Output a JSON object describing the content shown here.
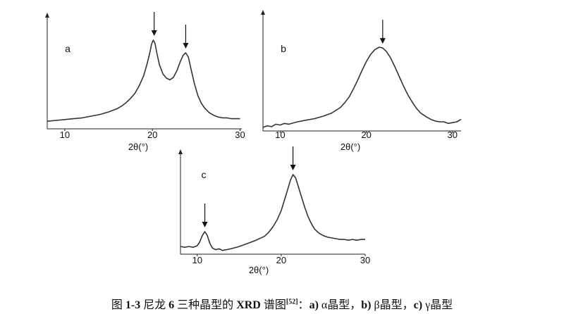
{
  "chart_data": [
    {
      "type": "line",
      "panel": "a",
      "xlabel": "2θ(°)",
      "ylabel": "",
      "xlim": [
        8,
        30.2
      ],
      "xticks": [
        10,
        20,
        30
      ],
      "peaks_marked": [
        20.2,
        23.8
      ],
      "series": [
        {
          "x": [
            8.0,
            9.0,
            10.0,
            11.0,
            12.0,
            13.0,
            14.0,
            15.0,
            16.0,
            16.5,
            17.0,
            17.5,
            18.0,
            18.5,
            19.0,
            19.4,
            19.7,
            19.9,
            20.1,
            20.3,
            20.5,
            20.8,
            21.2,
            21.6,
            22.0,
            22.4,
            22.8,
            23.2,
            23.5,
            23.8,
            24.1,
            24.4,
            24.8,
            25.2,
            25.6,
            26.0,
            26.5,
            27.0,
            27.5,
            28.0,
            28.5,
            29.0,
            29.5,
            30.0
          ],
          "y": [
            0.04,
            0.05,
            0.06,
            0.07,
            0.08,
            0.1,
            0.12,
            0.15,
            0.19,
            0.22,
            0.26,
            0.31,
            0.37,
            0.46,
            0.58,
            0.72,
            0.85,
            0.95,
            1.0,
            0.96,
            0.85,
            0.71,
            0.6,
            0.55,
            0.53,
            0.56,
            0.64,
            0.75,
            0.82,
            0.85,
            0.8,
            0.66,
            0.48,
            0.34,
            0.25,
            0.19,
            0.14,
            0.11,
            0.09,
            0.08,
            0.08,
            0.07,
            0.07,
            0.07
          ]
        }
      ]
    },
    {
      "type": "line",
      "panel": "b",
      "xlabel": "2θ(°)",
      "ylabel": "",
      "xlim": [
        8,
        31
      ],
      "xticks": [
        10,
        20,
        30
      ],
      "peaks_marked": [
        21.9
      ],
      "series": [
        {
          "x": [
            8.0,
            8.5,
            9.0,
            9.5,
            10.0,
            10.5,
            11.0,
            12.0,
            13.0,
            14.0,
            15.0,
            16.0,
            17.0,
            17.5,
            18.0,
            18.5,
            19.0,
            19.5,
            20.0,
            20.5,
            21.0,
            21.5,
            21.9,
            22.3,
            22.8,
            23.3,
            23.8,
            24.3,
            24.8,
            25.3,
            25.8,
            26.3,
            27.0,
            27.5,
            28.0,
            28.5,
            29.0,
            29.5,
            30.0,
            30.5,
            31.0
          ],
          "y": [
            0.0,
            0.02,
            0.01,
            0.04,
            0.03,
            0.05,
            0.04,
            0.07,
            0.09,
            0.11,
            0.14,
            0.18,
            0.25,
            0.31,
            0.38,
            0.48,
            0.59,
            0.71,
            0.82,
            0.91,
            0.97,
            1.0,
            0.99,
            0.95,
            0.87,
            0.76,
            0.64,
            0.52,
            0.41,
            0.32,
            0.24,
            0.18,
            0.13,
            0.1,
            0.08,
            0.07,
            0.07,
            0.05,
            0.06,
            0.07,
            0.1
          ]
        }
      ]
    },
    {
      "type": "line",
      "panel": "c",
      "xlabel": "2θ(°)",
      "ylabel": "",
      "xlim": [
        8,
        30
      ],
      "xticks": [
        10,
        20,
        30
      ],
      "peaks_marked": [
        10.9,
        21.4
      ],
      "series": [
        {
          "x": [
            8.0,
            8.5,
            9.0,
            9.5,
            10.0,
            10.3,
            10.6,
            10.9,
            11.2,
            11.5,
            11.8,
            12.2,
            12.6,
            13.0,
            13.5,
            14.0,
            15.0,
            16.0,
            17.0,
            18.0,
            18.5,
            19.0,
            19.5,
            20.0,
            20.4,
            20.8,
            21.1,
            21.4,
            21.7,
            22.0,
            22.4,
            22.8,
            23.2,
            23.6,
            24.0,
            24.5,
            25.0,
            25.5,
            26.0,
            26.5,
            27.0,
            27.5,
            28.0,
            28.5,
            29.0,
            29.5,
            30.0
          ],
          "y": [
            0.08,
            0.07,
            0.08,
            0.07,
            0.09,
            0.14,
            0.22,
            0.27,
            0.22,
            0.12,
            0.06,
            0.04,
            0.05,
            0.03,
            0.04,
            0.05,
            0.08,
            0.12,
            0.16,
            0.21,
            0.26,
            0.33,
            0.42,
            0.54,
            0.68,
            0.82,
            0.93,
            1.0,
            0.96,
            0.86,
            0.72,
            0.58,
            0.46,
            0.37,
            0.3,
            0.25,
            0.22,
            0.2,
            0.19,
            0.18,
            0.17,
            0.17,
            0.16,
            0.17,
            0.16,
            0.17,
            0.17
          ]
        }
      ]
    }
  ],
  "caption": {
    "prefix": "图 ",
    "figure_number": "1-3",
    "text_main": "尼龙 ",
    "nylon_number": "6",
    "text_after": " 三种晶型的 ",
    "xrd": "XRD",
    "text_pattern": " 谱图",
    "ref": "[52]",
    "colon": "：",
    "a_label": "a)",
    "a_text": " α晶型，",
    "b_label": "b)",
    "b_text": " β晶型，",
    "c_label": "c)",
    "c_text": " γ晶型"
  }
}
